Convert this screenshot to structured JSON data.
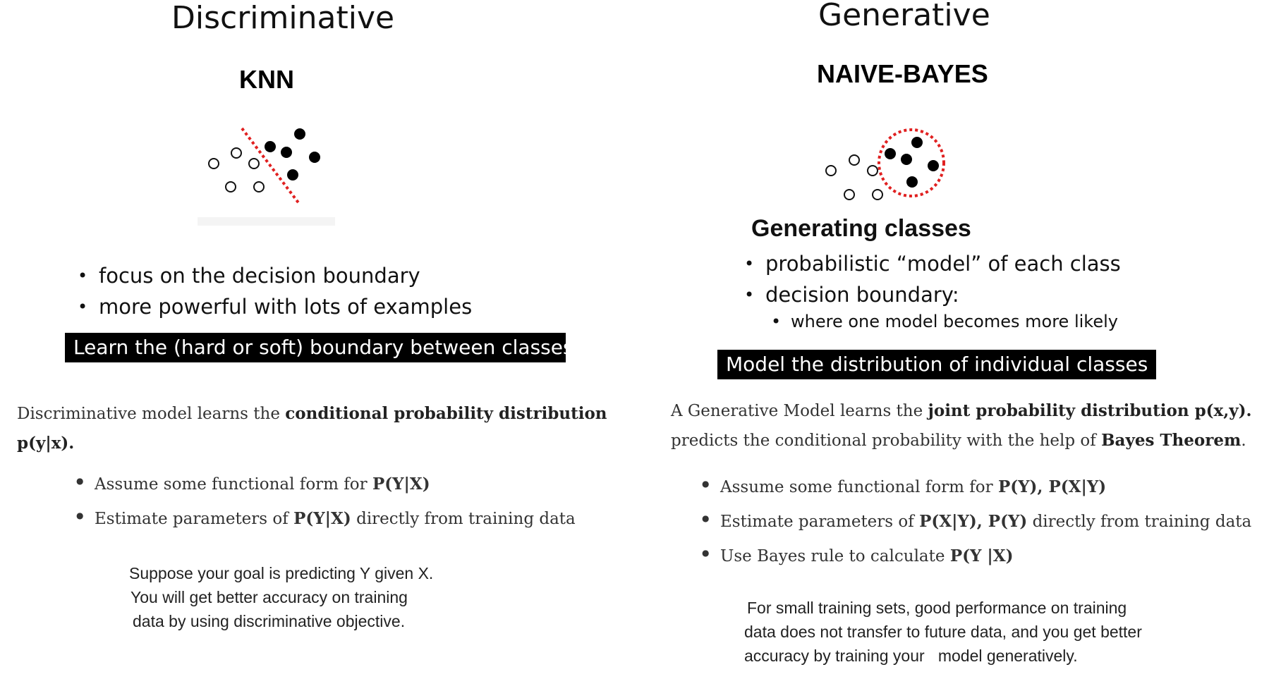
{
  "left": {
    "title": "Discriminative",
    "subtitle": "KNN",
    "bullets": [
      "focus on the decision boundary",
      "more powerful with lots of examples"
    ],
    "bar": "Learn the (hard or soft) boundary between classes",
    "desc_prefix": "Discriminative model learns the ",
    "desc_bold": "conditional probability distribution",
    "desc_line2": "p(y|x).",
    "points": [
      {
        "prefix": "Assume some functional form for ",
        "bold": "P(Y|X)",
        "suffix": ""
      },
      {
        "prefix": "Estimate parameters of ",
        "bold": "P(Y|X)",
        "suffix": " directly from training data"
      }
    ],
    "note": [
      "Suppose your goal is predicting Y given X.",
      "You will get better accuracy on training",
      "data by using discriminative objective."
    ]
  },
  "right": {
    "title": "Generative",
    "subtitle": "NAIVE-BAYES",
    "heading": "Generating classes",
    "bullets": [
      "probabilistic “model” of each class",
      "decision boundary:"
    ],
    "subbullet": "where one model becomes more likely",
    "bar": "Model the distribution of individual classes",
    "desc_prefix": "A Generative Model learns the ",
    "desc_bold": "joint probability distribution p(x,y).",
    "desc_line2_prefix": "predicts the conditional probability with the help of ",
    "desc_line2_bold": "Bayes Theorem",
    "desc_line2_suffix": ".",
    "points": [
      {
        "prefix": "Assume some functional form for ",
        "bold": "P(Y), P(X|Y)",
        "suffix": ""
      },
      {
        "prefix": "Estimate parameters of ",
        "bold": "P(X|Y), P(Y)",
        "suffix": " directly from training data"
      },
      {
        "prefix": "Use Bayes rule to calculate ",
        "bold": "P(Y |X)",
        "suffix": ""
      }
    ],
    "note": [
      "For small training sets, good performance on training",
      "data does not transfer to future data, and you get better",
      "accuracy by training your   model generatively."
    ]
  },
  "colors": {
    "boundary": "#e02020",
    "bar_bg": "#000000"
  }
}
